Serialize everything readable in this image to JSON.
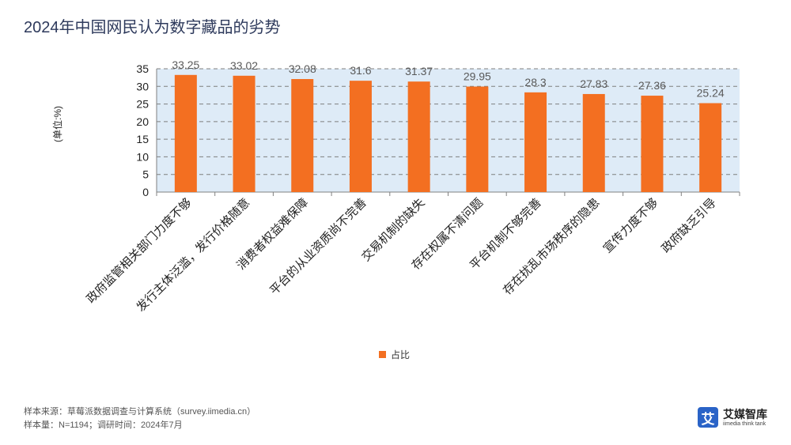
{
  "title": "2024年中国网民认为数字藏品的劣势",
  "unit_label": "(单位:%)",
  "legend_label": "占比",
  "source_line1": "样本来源：草莓派数据调查与计算系统（survey.iimedia.cn）",
  "source_line2": "样本量：N=1194；调研时间：2024年7月",
  "logo": {
    "mark": "艾",
    "name": "艾媒智库",
    "tagline": "iimedia think tank"
  },
  "colors": {
    "bar": "#f36f21",
    "plot_bg": "#deebf7",
    "grid": "#7f7f7f"
  },
  "chart_data": {
    "type": "bar",
    "categories": [
      "政府监管相关部门力度不够",
      "发行主体泛滥，发行价格随意",
      "消费者权益难保障",
      "平台的从业资质尚不完善",
      "交易机制的缺失",
      "存在权属不清问题",
      "平台机制不够完善",
      "存在扰乱市场秩序的隐患",
      "宣传力度不够",
      "政府缺乏引导"
    ],
    "series": [
      {
        "name": "占比",
        "values": [
          33.25,
          33.02,
          32.08,
          31.6,
          31.37,
          29.95,
          28.3,
          27.83,
          27.36,
          25.24
        ]
      }
    ],
    "yticks": [
      0,
      5,
      10,
      15,
      20,
      25,
      30,
      35
    ],
    "ylim": [
      0,
      35
    ],
    "grid": true,
    "legend_position": "bottom"
  }
}
